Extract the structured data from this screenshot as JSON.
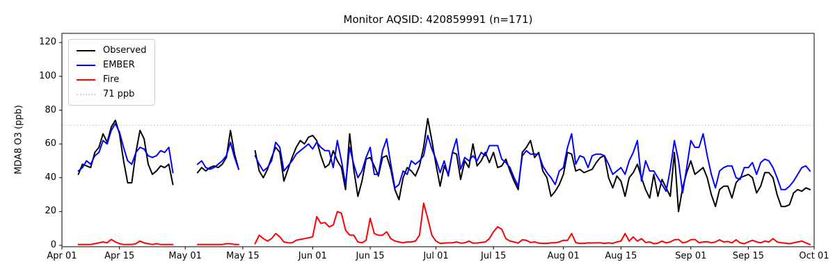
{
  "chart_data": {
    "type": "line",
    "title": "Monitor AQSID: 420859991 (n=171)",
    "ylabel": "MDA8 O3 (ppb)",
    "n_points": 171,
    "yticks": [
      0,
      20,
      40,
      60,
      80,
      100,
      120
    ],
    "ylim": [
      0,
      125
    ],
    "xticks": [
      "Apr 01",
      "Apr 15",
      "May 01",
      "May 15",
      "Jun 01",
      "Jun 15",
      "Jul 01",
      "Jul 15",
      "Aug 01",
      "Aug 15",
      "Sep 01",
      "Sep 15",
      "Oct 01"
    ],
    "xtick_days": [
      0,
      14,
      30,
      44,
      61,
      75,
      91,
      105,
      122,
      136,
      153,
      167,
      183
    ],
    "threshold": {
      "value": 71,
      "label": "71 ppb",
      "color": "#d3d3d3"
    },
    "legend": [
      {
        "label": "Observed",
        "color": "#000000",
        "style": "solid"
      },
      {
        "label": "EMBER",
        "color": "#0000ff",
        "style": "solid"
      },
      {
        "label": "Fire",
        "color": "#ff0000",
        "style": "solid"
      },
      {
        "label": "71 ppb",
        "color": "#d3d3d3",
        "style": "dotted"
      }
    ],
    "series_keys": [
      "observed",
      "ember",
      "fire"
    ],
    "segments": [
      {
        "start_day": 4,
        "start_date": "Apr 05",
        "observed": [
          42,
          48,
          47,
          46,
          55,
          58,
          66,
          61,
          70,
          74,
          66,
          50,
          37,
          37,
          55,
          68,
          63,
          48,
          42,
          44,
          47,
          46,
          48,
          36
        ],
        "ember": [
          44,
          46,
          50,
          48,
          53,
          55,
          62,
          60,
          68,
          72,
          67,
          58,
          50,
          48,
          55,
          58,
          57,
          53,
          52,
          53,
          56,
          55,
          58,
          43
        ],
        "fire": [
          0.5,
          0.5,
          0.5,
          0.5,
          1,
          1.5,
          2,
          1.5,
          3.5,
          2,
          1,
          0.5,
          0.5,
          0.5,
          1,
          2.5,
          1.5,
          1,
          0.5,
          1,
          0.5,
          0.5,
          0.5,
          0.5
        ]
      },
      {
        "start_day": 33,
        "start_date": "May 04",
        "observed": [
          43,
          46,
          44,
          46,
          47,
          46,
          48,
          52,
          68,
          54,
          45
        ],
        "ember": [
          48,
          50,
          46,
          45,
          46,
          48,
          50,
          53,
          61,
          52,
          45
        ],
        "fire": [
          0.5,
          0.5,
          0.5,
          0.5,
          0.5,
          0.5,
          0.5,
          1,
          1,
          0.5,
          0.5
        ]
      },
      {
        "start_day": 47,
        "start_date": "May 18",
        "observed": [
          56,
          44,
          40,
          45,
          52,
          58,
          55,
          38,
          45,
          52,
          58,
          62,
          60,
          64,
          65,
          62,
          53,
          46,
          48,
          56,
          50,
          46,
          33,
          66,
          45,
          29,
          38,
          51,
          52,
          47,
          41,
          52,
          53,
          45,
          33,
          27,
          40,
          46,
          44,
          41,
          47,
          58,
          75,
          62,
          48,
          35,
          47,
          42,
          55,
          54,
          39,
          50,
          46,
          60,
          47,
          50,
          55,
          49,
          55,
          46,
          47,
          51,
          44,
          38,
          33,
          55,
          58,
          62,
          52,
          55,
          44,
          40,
          29,
          32,
          36,
          42,
          55,
          54,
          44,
          45,
          43,
          44,
          45,
          49,
          52,
          53,
          40,
          34,
          41,
          38,
          29,
          40,
          43,
          48,
          40,
          33,
          28,
          42,
          29,
          39,
          34,
          29,
          55,
          20,
          34,
          43,
          50,
          42,
          44,
          46,
          40,
          30,
          23,
          33,
          35,
          35,
          28,
          37,
          40,
          41,
          42,
          40,
          31,
          35,
          43,
          43,
          40,
          30,
          23,
          23,
          24,
          31,
          33,
          32,
          34,
          33
        ],
        "ember": [
          53,
          48,
          44,
          46,
          50,
          61,
          58,
          44,
          47,
          50,
          54,
          56,
          58,
          60,
          57,
          61,
          58,
          56,
          56,
          46,
          62,
          50,
          36,
          58,
          48,
          40,
          44,
          52,
          58,
          42,
          42,
          56,
          63,
          48,
          34,
          36,
          44,
          42,
          50,
          48,
          50,
          53,
          65,
          57,
          51,
          43,
          50,
          41,
          55,
          63,
          45,
          52,
          50,
          53,
          50,
          55,
          53,
          59,
          59,
          59,
          51,
          49,
          46,
          40,
          35,
          53,
          56,
          54,
          54,
          54,
          47,
          43,
          40,
          36,
          44,
          46,
          58,
          66,
          48,
          53,
          52,
          46,
          53,
          54,
          54,
          53,
          48,
          42,
          44,
          46,
          42,
          50,
          55,
          62,
          38,
          50,
          44,
          44,
          40,
          36,
          32,
          45,
          62,
          50,
          31,
          46,
          62,
          58,
          58,
          66,
          53,
          42,
          34,
          44,
          46,
          47,
          47,
          40,
          39,
          46,
          46,
          49,
          42,
          49,
          51,
          50,
          46,
          40,
          33,
          33,
          35,
          38,
          42,
          46,
          47,
          44
        ],
        "fire": [
          1,
          6,
          4,
          2.5,
          4,
          7,
          5,
          2,
          1.5,
          1.5,
          3,
          3.5,
          4,
          4.5,
          5,
          17,
          13,
          13.5,
          11,
          12,
          20,
          19,
          9,
          6,
          6,
          2,
          1.5,
          3,
          16,
          7,
          6,
          6,
          8,
          4,
          2.5,
          2,
          1.5,
          2,
          2,
          2.5,
          6,
          25,
          16,
          6,
          2.5,
          1.2,
          1.3,
          1.5,
          1.5,
          2,
          1.3,
          1.5,
          2.5,
          1.3,
          1.4,
          1.7,
          2,
          4,
          8,
          11,
          9.5,
          4,
          2.5,
          2,
          1.3,
          3.3,
          3,
          1.7,
          2,
          1.3,
          1.2,
          1.2,
          1.5,
          1.5,
          2,
          3,
          2.9,
          7,
          1.6,
          1.2,
          1.2,
          1.5,
          1.4,
          1.5,
          1.5,
          1.2,
          1.5,
          1.2,
          2,
          2.5,
          7,
          2.5,
          5,
          2.5,
          4,
          1.7,
          2,
          1,
          1.3,
          2.5,
          1.5,
          2,
          3.3,
          3.5,
          1.5,
          2,
          3.3,
          3.5,
          1.5,
          2,
          2.2,
          1.5,
          2,
          3.3,
          2,
          2.3,
          1.5,
          3.3,
          1.5,
          1,
          2,
          3,
          2,
          1.5,
          2.5,
          2,
          4,
          2,
          1.5,
          1.3,
          1,
          1.5,
          2,
          2.5,
          1.5,
          0.5
        ]
      }
    ]
  }
}
